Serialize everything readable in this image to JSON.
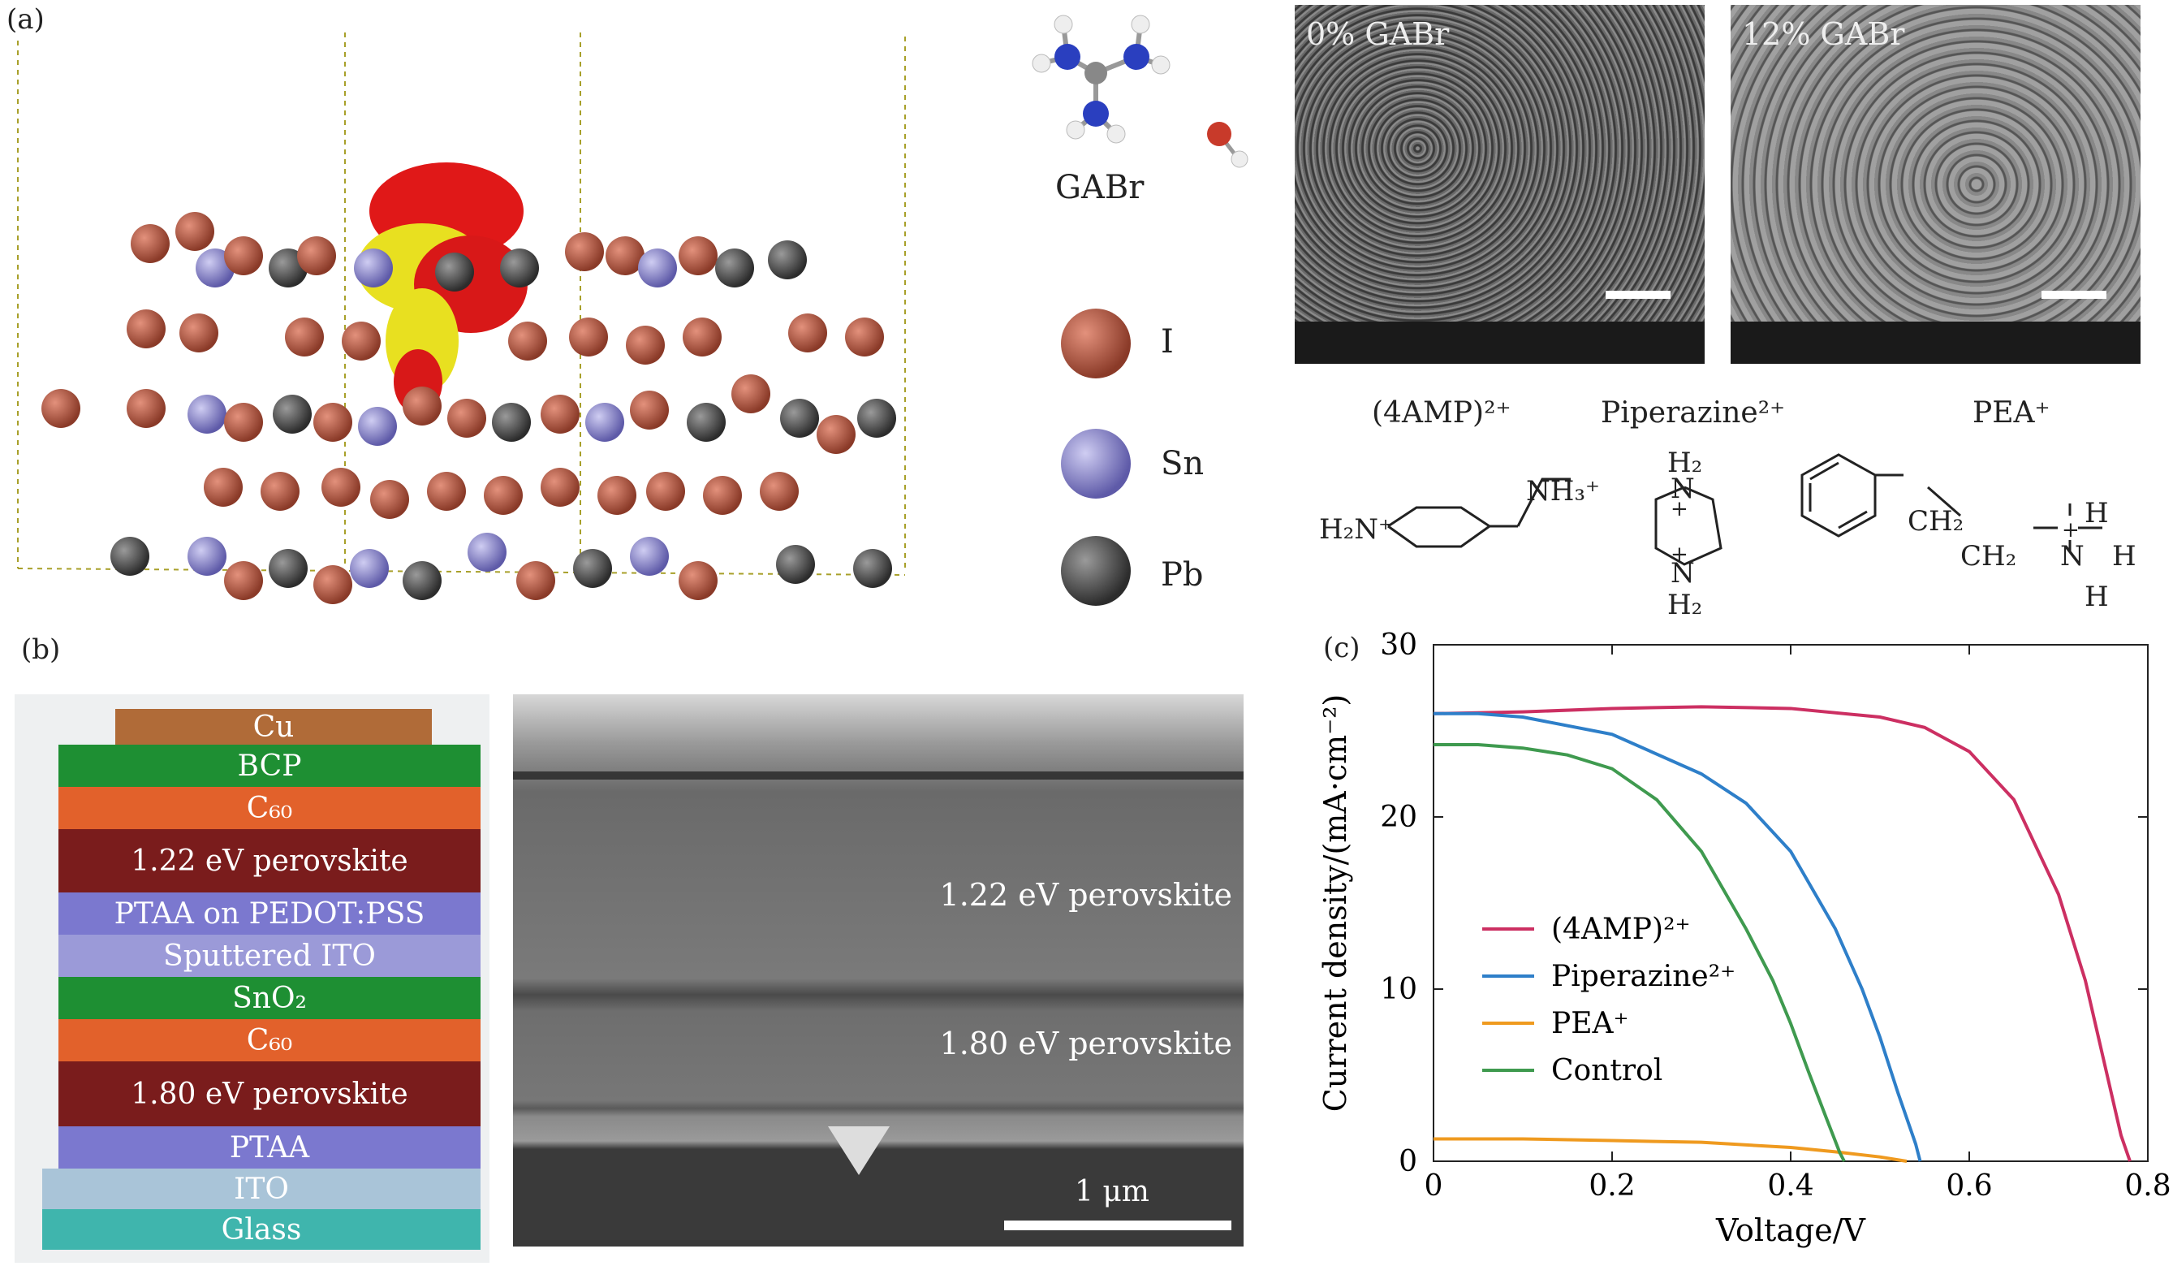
{
  "panel_labels": {
    "a": "(a)",
    "b": "(b)",
    "c": "(c)"
  },
  "panel_a": {
    "molecule_label": "GABr",
    "legend": [
      {
        "symbol": "I",
        "color": "#a0503a"
      },
      {
        "symbol": "Sn",
        "color": "#8a86c9"
      },
      {
        "symbol": "Pb",
        "color": "#555555"
      }
    ],
    "sem_images": [
      {
        "label": "0% GABr"
      },
      {
        "label": "12% GABr"
      }
    ],
    "cations": [
      {
        "name": "(4AMP)²⁺"
      },
      {
        "name": "Piperazine²⁺"
      },
      {
        "name": "PEA⁺"
      }
    ],
    "structures": {
      "amp": {
        "h2n": "H₂N⁺",
        "nh3": "NH₃⁺"
      },
      "pip": {
        "h2_top": "H₂",
        "n_top": "N",
        "plus_top": "+",
        "plus_bot": "+",
        "n_bot": "N",
        "h2_bot": "H₂"
      },
      "pea": {
        "ch2a": "CH₂",
        "ch2b": "CH₂",
        "n": "N",
        "plus": "+",
        "h_top": "H",
        "h_right": "H",
        "h_bot": "H"
      }
    }
  },
  "panel_b": {
    "stack_layers": [
      {
        "label": "Cu",
        "color": "#b06b38"
      },
      {
        "label": "BCP",
        "color": "#1e8f33"
      },
      {
        "label": "C₆₀",
        "color": "#e2612b"
      },
      {
        "label": "1.22 eV perovskite",
        "color": "#7a1c1c"
      },
      {
        "label": "PTAA on PEDOT:PSS",
        "color": "#7b78cf"
      },
      {
        "label": "Sputtered ITO",
        "color": "#9b9ad8"
      },
      {
        "label": "SnO₂",
        "color": "#1e8f33"
      },
      {
        "label": "C₆₀",
        "color": "#e2612b"
      },
      {
        "label": "1.80 eV perovskite",
        "color": "#7a1c1c"
      },
      {
        "label": "PTAA",
        "color": "#7b78cf"
      },
      {
        "label": "ITO",
        "color": "#a9c4d8"
      },
      {
        "label": "Glass",
        "color": "#3fb5ad"
      }
    ],
    "sem_labels": {
      "top": "1.22 eV perovskite",
      "bottom": "1.80 eV perovskite",
      "scale": "1 μm"
    }
  },
  "chart_data": {
    "type": "line",
    "xlabel": "Voltage/V",
    "ylabel": "Current density/(mA·cm⁻²)",
    "xlim": [
      0,
      0.8
    ],
    "ylim": [
      0,
      30
    ],
    "xticks": [
      "0",
      "0.2",
      "0.4",
      "0.6",
      "0.8"
    ],
    "yticks": [
      "0",
      "10",
      "20",
      "30"
    ],
    "legend_position": "center-left",
    "series": [
      {
        "name": "(4AMP)²⁺",
        "color": "#cc2f62",
        "x": [
          0,
          0.1,
          0.2,
          0.3,
          0.4,
          0.5,
          0.55,
          0.6,
          0.65,
          0.7,
          0.73,
          0.75,
          0.77,
          0.78
        ],
        "y": [
          26.0,
          26.1,
          26.3,
          26.4,
          26.3,
          25.8,
          25.2,
          23.8,
          21.0,
          15.5,
          10.5,
          6.0,
          1.5,
          0
        ]
      },
      {
        "name": "Piperazine²⁺",
        "color": "#2e7fc9",
        "x": [
          0,
          0.05,
          0.1,
          0.2,
          0.3,
          0.35,
          0.4,
          0.45,
          0.48,
          0.5,
          0.52,
          0.54,
          0.545
        ],
        "y": [
          26.0,
          26.0,
          25.8,
          24.8,
          22.5,
          20.8,
          18.0,
          13.5,
          10.0,
          7.2,
          4.0,
          1.0,
          0
        ]
      },
      {
        "name": "PEA⁺",
        "color": "#ef9a1f",
        "x": [
          0,
          0.1,
          0.2,
          0.3,
          0.4,
          0.45,
          0.5,
          0.53
        ],
        "y": [
          1.3,
          1.3,
          1.2,
          1.1,
          0.8,
          0.55,
          0.25,
          0
        ]
      },
      {
        "name": "Control",
        "color": "#3f9a4f",
        "x": [
          0,
          0.05,
          0.1,
          0.15,
          0.2,
          0.25,
          0.3,
          0.35,
          0.38,
          0.4,
          0.42,
          0.44,
          0.455,
          0.46
        ],
        "y": [
          24.2,
          24.2,
          24.0,
          23.6,
          22.8,
          21.0,
          18.0,
          13.5,
          10.5,
          8.0,
          5.2,
          2.5,
          0.5,
          0
        ]
      }
    ]
  }
}
